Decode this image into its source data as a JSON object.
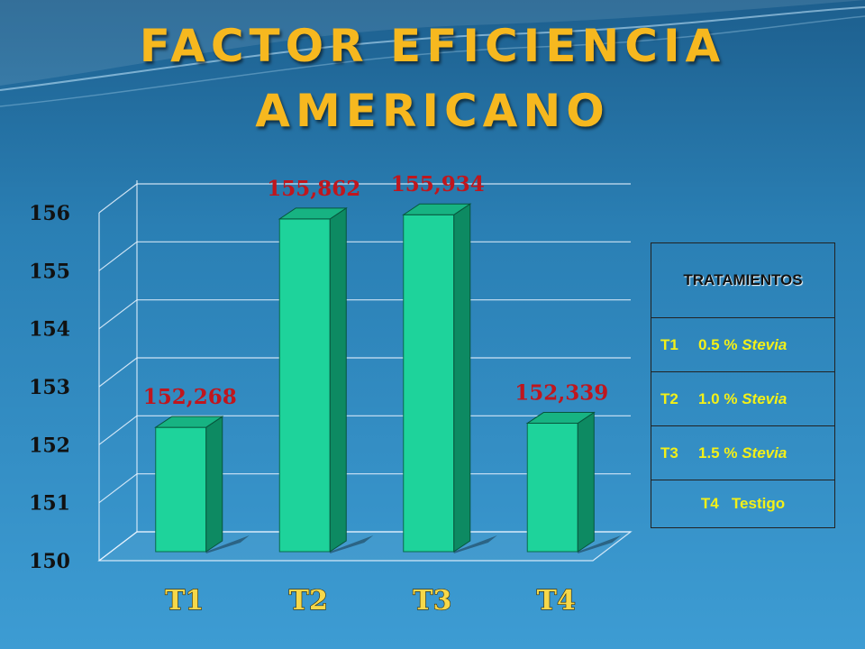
{
  "title": {
    "line1": "FACTOR EFICIENCIA",
    "line2": "AMERICANO"
  },
  "colors": {
    "title": "#f6b81f",
    "bar_front": "#1ed39b",
    "bar_side": "#0d8a62",
    "bar_top": "#17b382",
    "data_label": "#c0161d",
    "x_tick": "#f6d84a",
    "legend_text": "#f3f018"
  },
  "chart_data": {
    "type": "bar",
    "style": "3d-column",
    "categories": [
      "T1",
      "T2",
      "T3",
      "T4"
    ],
    "values": [
      152.268,
      155.862,
      155.934,
      152.339
    ],
    "data_labels": [
      "152,268",
      "155,862",
      "155,934",
      "152,339"
    ],
    "y_ticks": [
      "150",
      "151",
      "152",
      "153",
      "154",
      "155",
      "156"
    ],
    "ylim": [
      150,
      156
    ],
    "grid": true
  },
  "legend": {
    "header": "TRATAMIENTOS",
    "rows": [
      {
        "code": "T1",
        "pct": "0.5 %",
        "name": "Stevia"
      },
      {
        "code": "T2",
        "pct": "1.0 %",
        "name": "Stevia"
      },
      {
        "code": "T3",
        "pct": "1.5 %",
        "name": "Stevia"
      }
    ],
    "last_row": {
      "code": "T4",
      "name": "Testigo"
    }
  }
}
